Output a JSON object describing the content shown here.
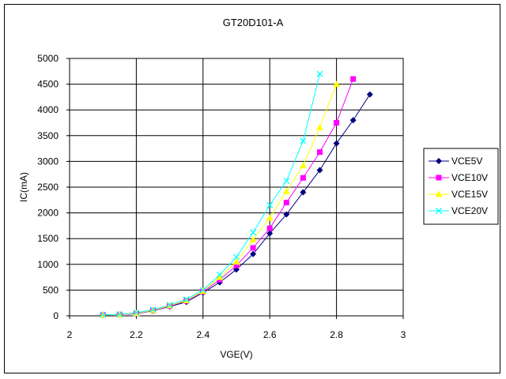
{
  "chart_data": {
    "type": "line",
    "title": "GT20D101-A",
    "xlabel": "VGE(V)",
    "ylabel": "IC(mA)",
    "xlim": [
      2,
      3
    ],
    "ylim": [
      0,
      5000
    ],
    "xticks": [
      "2",
      "2.2",
      "2.4",
      "2.6",
      "2.8",
      "3"
    ],
    "yticks": [
      "0",
      "500",
      "1000",
      "1500",
      "2000",
      "2500",
      "3000",
      "3500",
      "4000",
      "4500",
      "5000"
    ],
    "grid": "horizontal and vertical",
    "legend_position": "right",
    "series": [
      {
        "name": "VCE5V",
        "color": "#000080",
        "marker": "diamond",
        "x": [
          2.1,
          2.15,
          2.2,
          2.25,
          2.3,
          2.35,
          2.4,
          2.45,
          2.5,
          2.55,
          2.6,
          2.65,
          2.7,
          2.75,
          2.8,
          2.85,
          2.9
        ],
        "y": [
          20,
          25,
          40,
          100,
          180,
          270,
          450,
          650,
          900,
          1200,
          1600,
          1970,
          2400,
          2830,
          3350,
          3800,
          4300
        ]
      },
      {
        "name": "VCE10V",
        "color": "#ff00ff",
        "marker": "square",
        "x": [
          2.1,
          2.15,
          2.2,
          2.25,
          2.3,
          2.35,
          2.4,
          2.45,
          2.5,
          2.55,
          2.6,
          2.65,
          2.7,
          2.75,
          2.8,
          2.85
        ],
        "y": [
          20,
          25,
          45,
          105,
          190,
          290,
          470,
          700,
          980,
          1320,
          1700,
          2200,
          2680,
          3180,
          3750,
          4600
        ]
      },
      {
        "name": "VCE15V",
        "color": "#ffff00",
        "marker": "triangle",
        "x": [
          2.1,
          2.15,
          2.2,
          2.25,
          2.3,
          2.35,
          2.4,
          2.45,
          2.5,
          2.55,
          2.6,
          2.65,
          2.7,
          2.75,
          2.8
        ],
        "y": [
          20,
          25,
          50,
          110,
          200,
          300,
          480,
          750,
          1050,
          1480,
          1900,
          2420,
          2920,
          3660,
          4500
        ]
      },
      {
        "name": "VCE20V",
        "color": "#00ffff",
        "marker": "x",
        "x": [
          2.1,
          2.15,
          2.2,
          2.25,
          2.3,
          2.35,
          2.4,
          2.45,
          2.5,
          2.55,
          2.6,
          2.65,
          2.7,
          2.75
        ],
        "y": [
          20,
          30,
          60,
          120,
          210,
          320,
          500,
          800,
          1140,
          1620,
          2150,
          2620,
          3400,
          4700
        ]
      }
    ]
  }
}
